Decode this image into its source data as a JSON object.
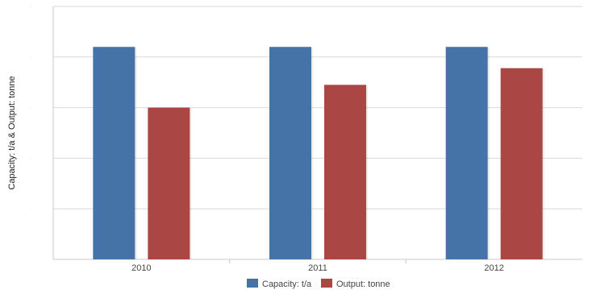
{
  "chart_data": {
    "type": "bar",
    "title": "",
    "xlabel": "",
    "ylabel": "Capacity: t/a & Output: tonne",
    "categories": [
      "2010",
      "2011",
      "2012"
    ],
    "series": [
      {
        "name": "Capacity: t/a",
        "color": "#4572a7",
        "values": [
          4.2,
          4.2,
          4.2
        ]
      },
      {
        "name": "Output: tonne",
        "color": "#aa4643",
        "values": [
          3.0,
          3.45,
          3.78
        ]
      }
    ],
    "ylim": [
      0,
      5
    ],
    "y_ticks": [
      0,
      1,
      2,
      3,
      4,
      5
    ],
    "grid": true,
    "legend_position": "bottom-center"
  }
}
